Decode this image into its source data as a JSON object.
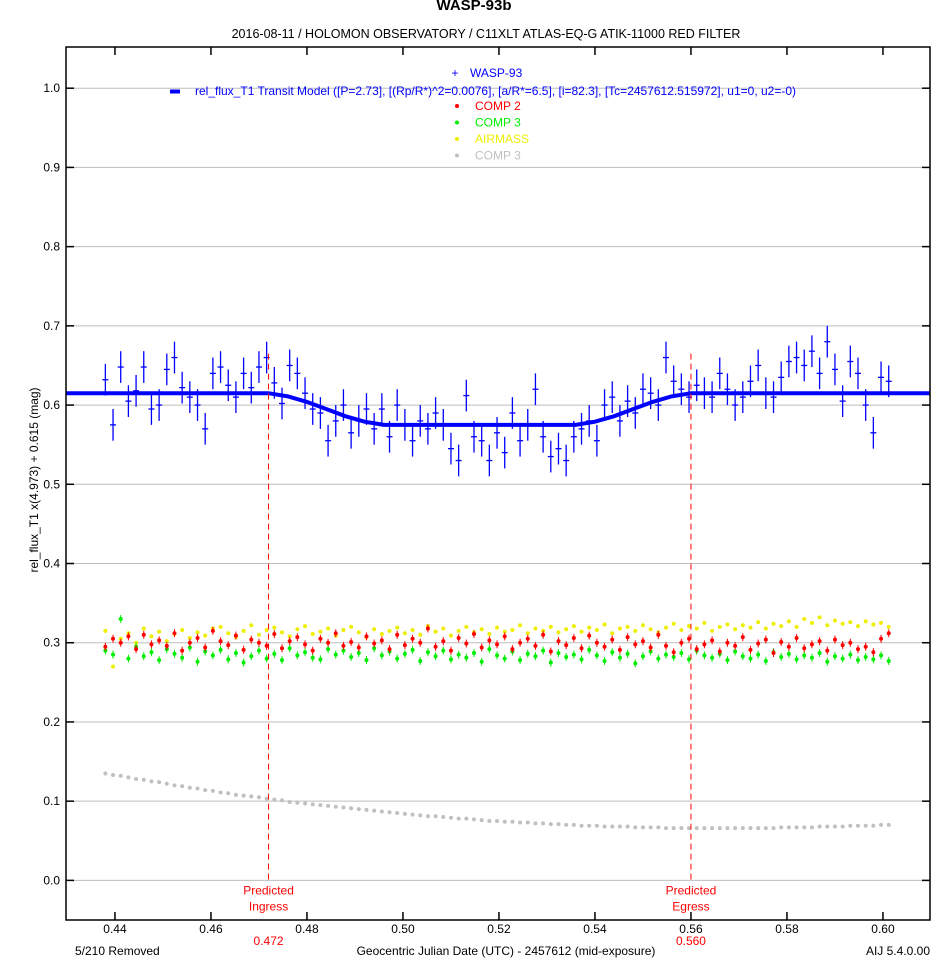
{
  "chart_data": {
    "type": "scatter",
    "title": "WASP-93b",
    "subtitle": "2016-08-11 / HOLOMON OBSERVATORY / C11XLT ATLAS-EQ-G ATIK-11000 RED FILTER",
    "xlabel": "Geocentric Julian Date (UTC) - 2457612 (mid-exposure)",
    "ylabel": "rel_flux_T1 x(4.973) + 0.615 (mag)",
    "xlim": [
      0.4298,
      0.6098
    ],
    "ylim": [
      -0.05,
      1.052
    ],
    "grid": true,
    "legend_position": "top-center",
    "x_ticks": [
      "0.44",
      "0.46",
      "0.48",
      "0.50",
      "0.52",
      "0.54",
      "0.56",
      "0.58",
      "0.60"
    ],
    "y_ticks": [
      "0.0",
      "0.1",
      "0.2",
      "0.3",
      "0.4",
      "0.5",
      "0.6",
      "0.7",
      "0.8",
      "0.9",
      "1.0"
    ],
    "footer_left": "5/210 Removed",
    "footer_right": "AIJ 5.4.0.00",
    "markers": [
      {
        "x": 0.472,
        "label_line1": "Predicted",
        "label_line2": "Ingress",
        "value_label": "0.472",
        "color": "#ff0000"
      },
      {
        "x": 0.56,
        "label_line1": "Predicted",
        "label_line2": "Egress",
        "value_label": "0.560",
        "color": "#ff0000"
      }
    ],
    "x": [
      0.438,
      0.4396,
      0.4412,
      0.4428,
      0.4444,
      0.446,
      0.4476,
      0.4492,
      0.4508,
      0.4524,
      0.454,
      0.4556,
      0.4572,
      0.4588,
      0.4604,
      0.462,
      0.4636,
      0.4652,
      0.4668,
      0.4684,
      0.47,
      0.4716,
      0.4732,
      0.4748,
      0.4764,
      0.478,
      0.4796,
      0.4812,
      0.4828,
      0.4844,
      0.486,
      0.4876,
      0.4892,
      0.4908,
      0.4924,
      0.494,
      0.4956,
      0.4972,
      0.4988,
      0.5004,
      0.502,
      0.5036,
      0.5052,
      0.5068,
      0.5084,
      0.51,
      0.5116,
      0.5132,
      0.5148,
      0.5164,
      0.518,
      0.5196,
      0.5212,
      0.5228,
      0.5244,
      0.526,
      0.5276,
      0.5292,
      0.5308,
      0.5324,
      0.534,
      0.5356,
      0.5372,
      0.5388,
      0.5404,
      0.542,
      0.5436,
      0.5452,
      0.5468,
      0.5484,
      0.55,
      0.5516,
      0.5532,
      0.5548,
      0.5564,
      0.558,
      0.5596,
      0.5612,
      0.5628,
      0.5644,
      0.566,
      0.5676,
      0.5692,
      0.5708,
      0.5724,
      0.574,
      0.5756,
      0.5772,
      0.5788,
      0.5804,
      0.582,
      0.5836,
      0.5852,
      0.5868,
      0.5884,
      0.59,
      0.5916,
      0.5932,
      0.5948,
      0.5964,
      0.598,
      0.5996,
      0.6012
    ],
    "series": [
      {
        "name": "WASP-93",
        "marker": "plus",
        "color": "#0000ff",
        "error": 0.02,
        "values": [
          0.632,
          0.575,
          0.648,
          0.605,
          0.618,
          0.648,
          0.595,
          0.6,
          0.645,
          0.66,
          0.622,
          0.61,
          0.6,
          0.57,
          0.64,
          0.648,
          0.625,
          0.61,
          0.64,
          0.622,
          0.648,
          0.66,
          0.628,
          0.602,
          0.65,
          0.64,
          0.615,
          0.595,
          0.59,
          0.555,
          0.58,
          0.6,
          0.565,
          0.58,
          0.595,
          0.57,
          0.595,
          0.56,
          0.6,
          0.575,
          0.555,
          0.58,
          0.57,
          0.59,
          0.575,
          0.545,
          0.53,
          0.612,
          0.56,
          0.555,
          0.53,
          0.565,
          0.54,
          0.59,
          0.555,
          0.575,
          0.62,
          0.56,
          0.535,
          0.545,
          0.53,
          0.56,
          0.57,
          0.58,
          0.555,
          0.6,
          0.61,
          0.58,
          0.605,
          0.59,
          0.62,
          0.615,
          0.6,
          0.66,
          0.63,
          0.62,
          0.61,
          0.625,
          0.615,
          0.61,
          0.64,
          0.62,
          0.6,
          0.61,
          0.63,
          0.65,
          0.615,
          0.61,
          0.635,
          0.655,
          0.66,
          0.65,
          0.668,
          0.64,
          0.68,
          0.645,
          0.605,
          0.655,
          0.64,
          0.6,
          0.565,
          0.635,
          0.63
        ]
      },
      {
        "name": "COMP 2",
        "marker": "dot",
        "color": "#ff0000",
        "values": [
          0.295,
          0.305,
          0.3,
          0.308,
          0.292,
          0.31,
          0.298,
          0.303,
          0.296,
          0.312,
          0.29,
          0.3,
          0.306,
          0.294,
          0.315,
          0.302,
          0.297,
          0.309,
          0.291,
          0.304,
          0.3,
          0.296,
          0.311,
          0.293,
          0.302,
          0.307,
          0.298,
          0.29,
          0.305,
          0.3,
          0.312,
          0.296,
          0.301,
          0.294,
          0.308,
          0.299,
          0.303,
          0.292,
          0.31,
          0.297,
          0.305,
          0.3,
          0.318,
          0.295,
          0.302,
          0.29,
          0.306,
          0.299,
          0.311,
          0.294,
          0.303,
          0.298,
          0.308,
          0.292,
          0.3,
          0.305,
          0.296,
          0.31,
          0.289,
          0.302,
          0.297,
          0.306,
          0.293,
          0.309,
          0.3,
          0.295,
          0.304,
          0.291,
          0.307,
          0.298,
          0.302,
          0.294,
          0.31,
          0.296,
          0.288,
          0.3,
          0.305,
          0.292,
          0.298,
          0.303,
          0.289,
          0.3,
          0.296,
          0.307,
          0.291,
          0.299,
          0.304,
          0.287,
          0.301,
          0.295,
          0.306,
          0.293,
          0.298,
          0.302,
          0.29,
          0.304,
          0.297,
          0.3,
          0.292,
          0.295,
          0.288,
          0.305,
          0.312
        ]
      },
      {
        "name": "COMP 3",
        "marker": "dot",
        "color": "#00ee00",
        "values": [
          0.29,
          0.285,
          0.33,
          0.28,
          0.295,
          0.283,
          0.288,
          0.278,
          0.292,
          0.286,
          0.281,
          0.294,
          0.276,
          0.289,
          0.284,
          0.291,
          0.279,
          0.287,
          0.275,
          0.283,
          0.29,
          0.28,
          0.286,
          0.278,
          0.293,
          0.284,
          0.288,
          0.281,
          0.279,
          0.292,
          0.285,
          0.29,
          0.282,
          0.287,
          0.278,
          0.293,
          0.284,
          0.289,
          0.28,
          0.286,
          0.291,
          0.277,
          0.288,
          0.283,
          0.29,
          0.279,
          0.285,
          0.281,
          0.287,
          0.276,
          0.292,
          0.284,
          0.28,
          0.289,
          0.278,
          0.286,
          0.283,
          0.29,
          0.275,
          0.287,
          0.282,
          0.285,
          0.279,
          0.291,
          0.284,
          0.277,
          0.288,
          0.281,
          0.286,
          0.274,
          0.283,
          0.289,
          0.28,
          0.285,
          0.282,
          0.287,
          0.279,
          0.29,
          0.284,
          0.281,
          0.286,
          0.278,
          0.289,
          0.283,
          0.28,
          0.285,
          0.277,
          0.288,
          0.282,
          0.286,
          0.279,
          0.284,
          0.281,
          0.287,
          0.276,
          0.283,
          0.28,
          0.285,
          0.278,
          0.282,
          0.279,
          0.284,
          0.277
        ]
      },
      {
        "name": "AIRMASS",
        "marker": "dot",
        "color": "#eeee00",
        "values": [
          0.315,
          0.27,
          0.305,
          0.312,
          0.3,
          0.318,
          0.308,
          0.314,
          0.302,
          0.311,
          0.316,
          0.306,
          0.313,
          0.309,
          0.318,
          0.32,
          0.312,
          0.307,
          0.315,
          0.322,
          0.31,
          0.316,
          0.319,
          0.313,
          0.308,
          0.317,
          0.321,
          0.311,
          0.314,
          0.318,
          0.309,
          0.316,
          0.32,
          0.313,
          0.307,
          0.317,
          0.311,
          0.315,
          0.319,
          0.312,
          0.316,
          0.31,
          0.321,
          0.314,
          0.318,
          0.309,
          0.315,
          0.32,
          0.313,
          0.317,
          0.311,
          0.319,
          0.314,
          0.316,
          0.322,
          0.312,
          0.318,
          0.315,
          0.32,
          0.313,
          0.317,
          0.321,
          0.314,
          0.319,
          0.316,
          0.323,
          0.312,
          0.318,
          0.32,
          0.315,
          0.322,
          0.317,
          0.313,
          0.319,
          0.324,
          0.316,
          0.321,
          0.318,
          0.325,
          0.315,
          0.32,
          0.323,
          0.317,
          0.322,
          0.319,
          0.326,
          0.318,
          0.324,
          0.321,
          0.327,
          0.32,
          0.33,
          0.325,
          0.332,
          0.322,
          0.328,
          0.324,
          0.326,
          0.321,
          0.327,
          0.323,
          0.325,
          0.32
        ]
      },
      {
        "name": "COMP 3",
        "marker": "dot",
        "color": "#c0c0c0",
        "values": [
          0.135,
          0.133,
          0.132,
          0.13,
          0.128,
          0.127,
          0.125,
          0.124,
          0.122,
          0.12,
          0.119,
          0.117,
          0.116,
          0.114,
          0.113,
          0.111,
          0.11,
          0.108,
          0.107,
          0.106,
          0.105,
          0.103,
          0.102,
          0.101,
          0.099,
          0.098,
          0.097,
          0.096,
          0.095,
          0.094,
          0.093,
          0.092,
          0.091,
          0.09,
          0.089,
          0.088,
          0.087,
          0.086,
          0.085,
          0.084,
          0.083,
          0.082,
          0.081,
          0.081,
          0.08,
          0.079,
          0.078,
          0.078,
          0.077,
          0.076,
          0.075,
          0.075,
          0.074,
          0.074,
          0.073,
          0.073,
          0.072,
          0.072,
          0.071,
          0.071,
          0.07,
          0.07,
          0.069,
          0.069,
          0.069,
          0.068,
          0.068,
          0.068,
          0.068,
          0.067,
          0.067,
          0.067,
          0.067,
          0.066,
          0.066,
          0.066,
          0.066,
          0.066,
          0.066,
          0.066,
          0.066,
          0.066,
          0.066,
          0.066,
          0.066,
          0.066,
          0.066,
          0.066,
          0.067,
          0.067,
          0.067,
          0.067,
          0.067,
          0.068,
          0.068,
          0.068,
          0.068,
          0.069,
          0.069,
          0.069,
          0.069,
          0.07,
          0.07
        ]
      }
    ],
    "model": {
      "name": "rel_flux_T1 Transit Model ([P=2.73], [(Rp/R*)^2=0.0076], [a/R*=6.5], [i=82.3], [Tc=2457612.515972], u1=0, u2=-0)",
      "color": "#0000ff",
      "x": [
        0.4298,
        0.472,
        0.476,
        0.48,
        0.484,
        0.488,
        0.492,
        0.496,
        0.536,
        0.54,
        0.544,
        0.548,
        0.552,
        0.556,
        0.56,
        0.6098
      ],
      "y": [
        0.615,
        0.615,
        0.611,
        0.604,
        0.595,
        0.586,
        0.579,
        0.575,
        0.575,
        0.579,
        0.586,
        0.595,
        0.604,
        0.611,
        0.615,
        0.615
      ]
    }
  }
}
